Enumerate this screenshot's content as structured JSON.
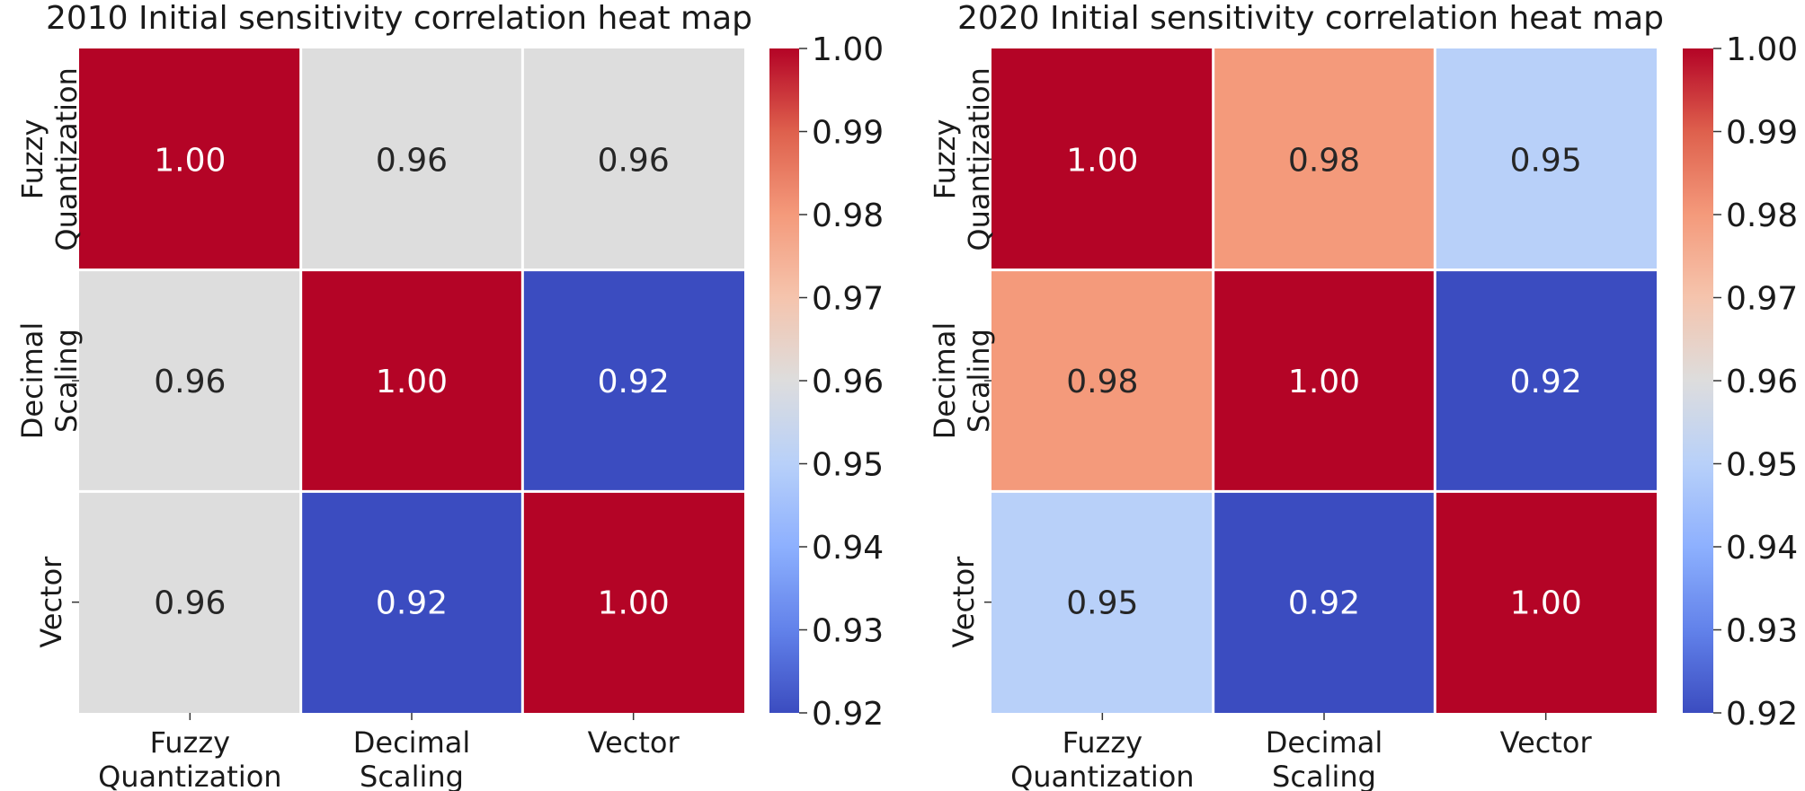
{
  "chart_data": [
    {
      "type": "heatmap",
      "title": "2010 Initial sensitivity correlation heat map",
      "x_tick_labels": [
        "Fuzzy\nQuantization",
        "Decimal\nScaling",
        "Vector"
      ],
      "y_tick_labels": [
        "Fuzzy\nQuantization",
        "Decimal\nScaling",
        "Vector"
      ],
      "values": [
        [
          1.0,
          0.96,
          0.96
        ],
        [
          0.96,
          1.0,
          0.92
        ],
        [
          0.96,
          0.92,
          1.0
        ]
      ],
      "annotations": [
        [
          "1.00",
          "0.96",
          "0.96"
        ],
        [
          "0.96",
          "1.00",
          "0.92"
        ],
        [
          "0.96",
          "0.92",
          "1.00"
        ]
      ],
      "colormap": "coolwarm",
      "vmin": 0.92,
      "vmax": 1.0,
      "colorbar_ticks": [
        "0.92",
        "0.93",
        "0.94",
        "0.95",
        "0.96",
        "0.97",
        "0.98",
        "0.99",
        "1.00"
      ]
    },
    {
      "type": "heatmap",
      "title": "2020 Initial sensitivity correlation heat map",
      "x_tick_labels": [
        "Fuzzy\nQuantization",
        "Decimal\nScaling",
        "Vector"
      ],
      "y_tick_labels": [
        "Fuzzy\nQuantization",
        "Decimal\nScaling",
        "Vector"
      ],
      "values": [
        [
          1.0,
          0.98,
          0.95
        ],
        [
          0.98,
          1.0,
          0.92
        ],
        [
          0.95,
          0.92,
          1.0
        ]
      ],
      "annotations": [
        [
          "1.00",
          "0.98",
          "0.95"
        ],
        [
          "0.98",
          "1.00",
          "0.92"
        ],
        [
          "0.95",
          "0.92",
          "1.00"
        ]
      ],
      "colormap": "coolwarm",
      "vmin": 0.92,
      "vmax": 1.0,
      "colorbar_ticks": [
        "0.92",
        "0.93",
        "0.94",
        "0.95",
        "0.96",
        "0.97",
        "0.98",
        "0.99",
        "1.00"
      ]
    }
  ]
}
